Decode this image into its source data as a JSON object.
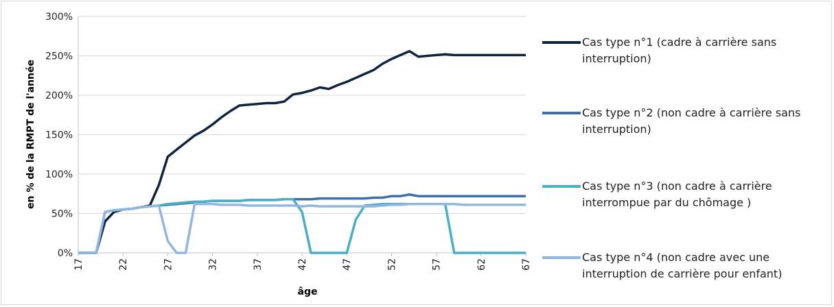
{
  "chart_data": {
    "type": "line",
    "xlabel": "âge",
    "ylabel": "en % de la RMPT de l'année",
    "x_ticks": [
      "17",
      "22",
      "27",
      "32",
      "37",
      "42",
      "47",
      "52",
      "57",
      "62",
      "67"
    ],
    "y_ticks": [
      "0%",
      "50%",
      "100%",
      "150%",
      "200%",
      "250%",
      "300%"
    ],
    "xlim": [
      17,
      67
    ],
    "ylim": [
      0,
      300
    ],
    "grid": "horizontal",
    "legend_position": "right",
    "x": [
      17,
      18,
      19,
      20,
      21,
      22,
      23,
      24,
      25,
      26,
      27,
      28,
      29,
      30,
      31,
      32,
      33,
      34,
      35,
      36,
      37,
      38,
      39,
      40,
      41,
      42,
      43,
      44,
      45,
      46,
      47,
      48,
      49,
      50,
      51,
      52,
      53,
      54,
      55,
      56,
      57,
      58,
      59,
      60,
      61,
      62,
      63,
      64,
      65,
      66,
      67
    ],
    "series": [
      {
        "name": "Cas type n°1 (cadre à carrière sans interruption)",
        "color": "#0f233e",
        "values": [
          0,
          0,
          0,
          40,
          52,
          55,
          56,
          58,
          60,
          86,
          122,
          131,
          140,
          149,
          155,
          163,
          172,
          180,
          187,
          188,
          189,
          190,
          190,
          192,
          201,
          203,
          206,
          210,
          208,
          213,
          217,
          222,
          227,
          232,
          240,
          246,
          251,
          256,
          249,
          250,
          251,
          252,
          251,
          251,
          251,
          251,
          251,
          251,
          251,
          251,
          251
        ]
      },
      {
        "name": "Cas type n°2 (non cadre à carrière sans interruption)",
        "color": "#3e6ea8",
        "values": [
          0,
          0,
          0,
          52,
          54,
          55,
          56,
          58,
          59,
          60,
          61,
          62,
          63,
          64,
          65,
          66,
          66,
          66,
          66,
          67,
          67,
          67,
          67,
          68,
          68,
          68,
          68,
          69,
          69,
          69,
          69,
          69,
          69,
          70,
          70,
          72,
          72,
          74,
          72,
          72,
          72,
          72,
          72,
          72,
          72,
          72,
          72,
          72,
          72,
          72,
          72
        ]
      },
      {
        "name": "Cas type n°3 (non cadre à carrière interrompue par du chômage )",
        "color": "#4aaec4",
        "values": [
          0,
          0,
          0,
          52,
          54,
          55,
          56,
          58,
          59,
          60,
          62,
          63,
          64,
          65,
          65,
          66,
          66,
          66,
          66,
          67,
          67,
          67,
          67,
          68,
          68,
          52,
          0,
          0,
          0,
          0,
          0,
          42,
          60,
          61,
          62,
          62,
          62,
          62,
          62,
          62,
          62,
          62,
          0,
          0,
          0,
          0,
          0,
          0,
          0,
          0,
          0
        ]
      },
      {
        "name": "Cas type n°4 (non cadre avec une interruption de carrière pour enfant)",
        "color": "#93b6e0",
        "values": [
          0,
          0,
          0,
          52,
          54,
          55,
          56,
          58,
          59,
          60,
          15,
          0,
          0,
          62,
          62,
          62,
          61,
          61,
          61,
          60,
          60,
          60,
          60,
          60,
          60,
          59,
          60,
          59,
          59,
          59,
          59,
          59,
          59,
          59,
          60,
          61,
          61,
          62,
          62,
          62,
          62,
          62,
          62,
          61,
          61,
          61,
          61,
          61,
          61,
          61,
          61
        ]
      }
    ]
  }
}
